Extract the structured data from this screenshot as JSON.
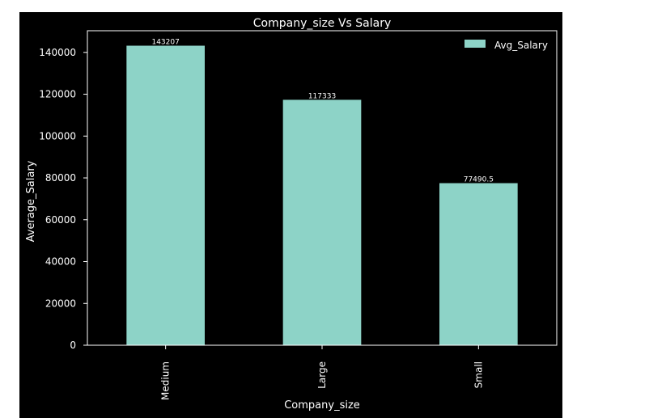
{
  "chart_data": {
    "type": "bar",
    "title": "Company_size Vs Salary",
    "xlabel": "Company_size",
    "ylabel": "Average_Salary",
    "categories": [
      "Medium",
      "Large",
      "Small"
    ],
    "series": [
      {
        "name": "Avg_Salary",
        "values": [
          143207,
          117333,
          77490.5
        ]
      }
    ],
    "data_labels": [
      "143207",
      "117333",
      "77490.5"
    ],
    "ylim": [
      0,
      150364
    ],
    "yticks": [
      0,
      20000,
      40000,
      60000,
      80000,
      100000,
      120000,
      140000
    ],
    "ytick_labels": [
      "0",
      "20000",
      "40000",
      "60000",
      "80000",
      "100000",
      "120000",
      "140000"
    ],
    "legend_position": "top-right",
    "grid": false,
    "colors": {
      "bar": "#8dd3c7",
      "background": "#000000",
      "text": "#ffffff"
    }
  }
}
